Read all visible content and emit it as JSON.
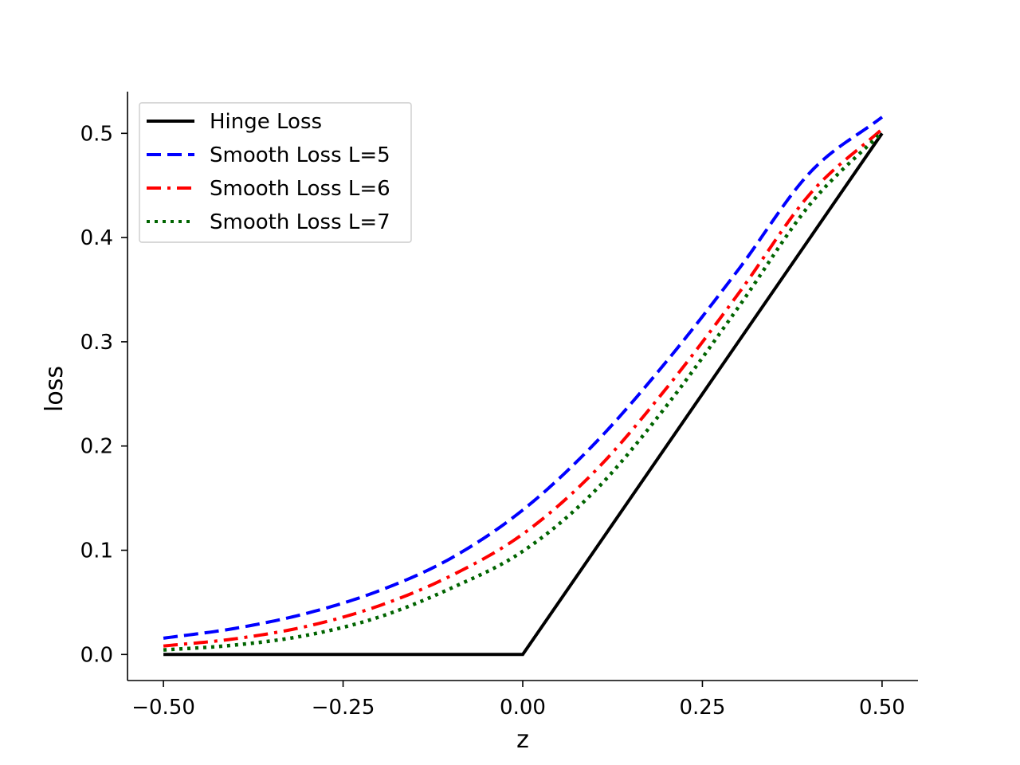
{
  "chart_data": {
    "type": "line",
    "title": "",
    "xlabel": "z",
    "ylabel": "loss",
    "xlim": [
      -0.55,
      0.55
    ],
    "ylim": [
      -0.025,
      0.54
    ],
    "x_ticks": [
      -0.5,
      -0.25,
      0.0,
      0.25,
      0.5
    ],
    "x_tick_labels": [
      "−0.50",
      "−0.25",
      "0.00",
      "0.25",
      "0.50"
    ],
    "y_ticks": [
      0.0,
      0.1,
      0.2,
      0.3,
      0.4,
      0.5
    ],
    "y_tick_labels": [
      "0.0",
      "0.1",
      "0.2",
      "0.3",
      "0.4",
      "0.5"
    ],
    "grid": false,
    "legend_position": "top-left",
    "series": [
      {
        "name": "Hinge Loss",
        "color": "#000000",
        "style": "solid",
        "x": [
          -0.5,
          0.0,
          0.5
        ],
        "y": [
          0.0,
          0.0,
          0.5
        ]
      },
      {
        "name": "Smooth Loss L=5",
        "color": "#0000ff",
        "style": "dashed",
        "x": [
          -0.5,
          -0.4,
          -0.3,
          -0.2,
          -0.1,
          0.0,
          0.1,
          0.2,
          0.3,
          0.4,
          0.5
        ],
        "y": [
          0.0156,
          0.0251,
          0.0396,
          0.0611,
          0.0923,
          0.1386,
          0.2023,
          0.2811,
          0.3692,
          0.4626,
          0.5156
        ]
      },
      {
        "name": "Smooth Loss L=6",
        "color": "#ff0000",
        "style": "dashdot",
        "x": [
          -0.5,
          -0.4,
          -0.3,
          -0.2,
          -0.1,
          0.0,
          0.1,
          0.2,
          0.3,
          0.4,
          0.5
        ],
        "y": [
          0.0081,
          0.0151,
          0.0271,
          0.0467,
          0.0755,
          0.1155,
          0.1755,
          0.2555,
          0.3461,
          0.4421,
          0.5041
        ]
      },
      {
        "name": "Smooth Loss L=7",
        "color": "#006400",
        "style": "dotted",
        "x": [
          -0.5,
          -0.4,
          -0.3,
          -0.2,
          -0.1,
          0.0,
          0.1,
          0.2,
          0.3,
          0.4,
          0.5
        ],
        "y": [
          0.0043,
          0.0091,
          0.0185,
          0.0359,
          0.0635,
          0.099,
          0.1567,
          0.2385,
          0.3331,
          0.4321,
          0.5012
        ]
      }
    ]
  }
}
